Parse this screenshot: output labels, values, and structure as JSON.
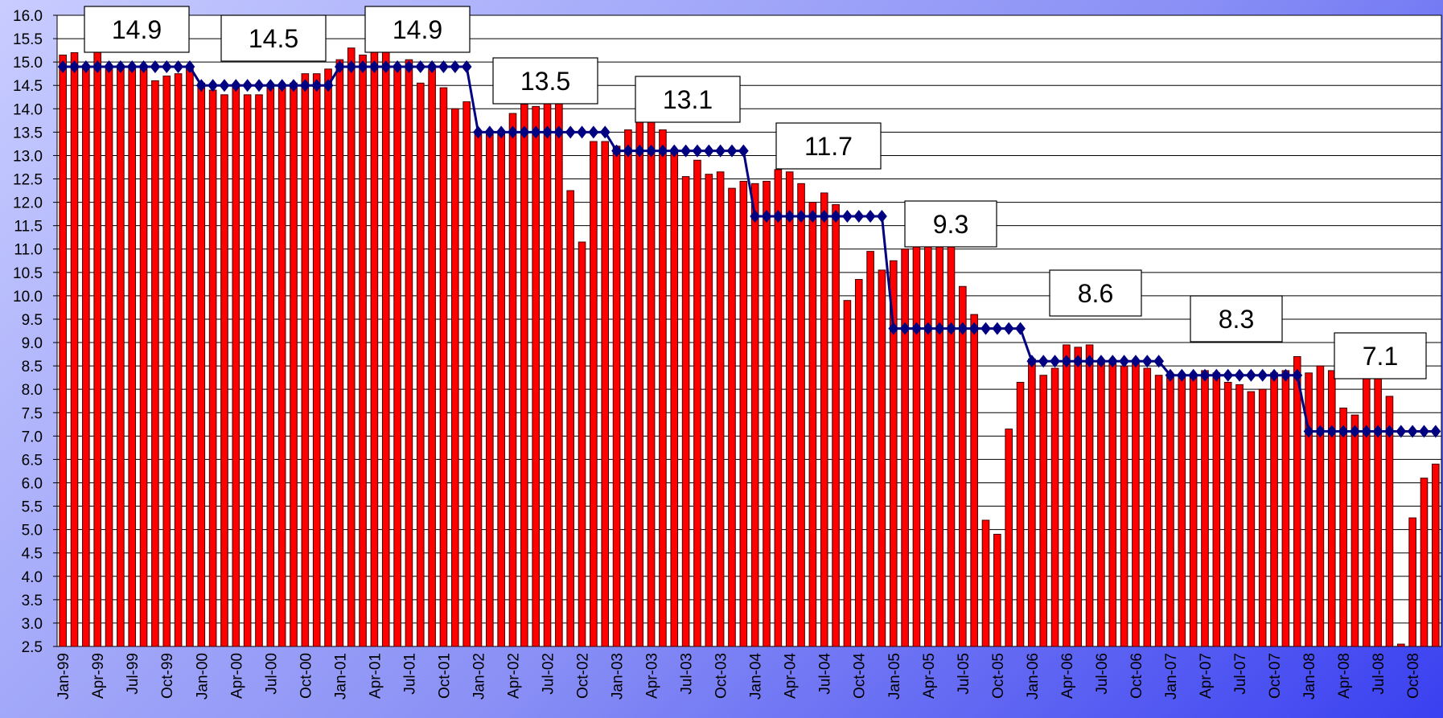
{
  "chart_data": {
    "type": "bar",
    "categories": [
      "Jan-99",
      null,
      null,
      "Apr-99",
      null,
      null,
      "Jul-99",
      null,
      null,
      "Oct-99",
      null,
      null,
      "Jan-00",
      null,
      null,
      "Apr-00",
      null,
      null,
      "Jul-00",
      null,
      null,
      "Oct-00",
      null,
      null,
      "Jan-01",
      null,
      null,
      "Apr-01",
      null,
      null,
      "Jul-01",
      null,
      null,
      "Oct-01",
      null,
      null,
      "Jan-02",
      null,
      null,
      "Apr-02",
      null,
      null,
      "Jul-02",
      null,
      null,
      "Oct-02",
      null,
      null,
      "Jan-03",
      null,
      null,
      "Apr-03",
      null,
      null,
      "Jul-03",
      null,
      null,
      "Oct-03",
      null,
      null,
      "Jan-04",
      null,
      null,
      "Apr-04",
      null,
      null,
      "Jul-04",
      null,
      null,
      "Oct-04",
      null,
      null,
      "Jan-05",
      null,
      null,
      "Apr-05",
      null,
      null,
      "Jul-05",
      null,
      null,
      "Oct-05",
      null,
      null,
      "Jan-06",
      null,
      null,
      "Apr-06",
      null,
      null,
      "Jul-06",
      null,
      null,
      "Oct-06",
      null,
      null,
      "Jan-07",
      null,
      null,
      "Apr-07",
      null,
      null,
      "Jul-07",
      null,
      null,
      "Oct-07",
      null,
      null,
      "Jan-08",
      null,
      null,
      "Apr-08",
      null,
      null,
      "Jul-08",
      null,
      null,
      "Oct-08",
      null,
      null
    ],
    "series": [
      {
        "mark": "bar",
        "color": "#ff0000",
        "values": [
          15.15,
          15.2,
          14.9,
          15.3,
          14.9,
          14.9,
          14.85,
          14.85,
          14.6,
          14.7,
          14.75,
          14.9,
          14.55,
          14.4,
          14.3,
          14.5,
          14.3,
          14.3,
          14.45,
          14.5,
          14.55,
          14.75,
          14.75,
          14.85,
          15.05,
          15.3,
          15.15,
          15.5,
          15.3,
          14.9,
          15.05,
          14.55,
          14.85,
          14.45,
          14.0,
          14.15,
          13.45,
          13.45,
          13.5,
          13.9,
          14.1,
          14.05,
          14.65,
          14.55,
          12.25,
          11.15,
          13.3,
          13.3,
          13.2,
          13.55,
          13.8,
          13.8,
          13.55,
          13.1,
          12.55,
          12.9,
          12.6,
          12.65,
          12.3,
          12.45,
          12.4,
          12.45,
          12.7,
          12.65,
          12.4,
          12.0,
          12.2,
          11.95,
          9.9,
          10.35,
          10.95,
          10.55,
          10.75,
          11.0,
          11.1,
          11.15,
          11.35,
          11.05,
          10.2,
          9.6,
          5.2,
          4.9,
          7.15,
          8.15,
          8.65,
          8.3,
          8.45,
          8.95,
          8.9,
          8.95,
          8.6,
          8.55,
          8.5,
          8.55,
          8.45,
          8.3,
          8.25,
          8.3,
          8.3,
          8.4,
          8.35,
          8.15,
          8.1,
          7.95,
          8.0,
          8.35,
          8.4,
          8.7,
          8.35,
          8.5,
          8.4,
          7.6,
          7.45,
          8.35,
          8.4,
          7.85,
          2.55,
          5.25,
          6.1,
          6.4
        ]
      },
      {
        "mark": "line",
        "color": "#000080",
        "values": [
          14.9,
          14.9,
          14.9,
          14.9,
          14.9,
          14.9,
          14.9,
          14.9,
          14.9,
          14.9,
          14.9,
          14.9,
          14.5,
          14.5,
          14.5,
          14.5,
          14.5,
          14.5,
          14.5,
          14.5,
          14.5,
          14.5,
          14.5,
          14.5,
          14.9,
          14.9,
          14.9,
          14.9,
          14.9,
          14.9,
          14.9,
          14.9,
          14.9,
          14.9,
          14.9,
          14.9,
          13.5,
          13.5,
          13.5,
          13.5,
          13.5,
          13.5,
          13.5,
          13.5,
          13.5,
          13.5,
          13.5,
          13.5,
          13.1,
          13.1,
          13.1,
          13.1,
          13.1,
          13.1,
          13.1,
          13.1,
          13.1,
          13.1,
          13.1,
          13.1,
          11.7,
          11.7,
          11.7,
          11.7,
          11.7,
          11.7,
          11.7,
          11.7,
          11.7,
          11.7,
          11.7,
          11.7,
          9.3,
          9.3,
          9.3,
          9.3,
          9.3,
          9.3,
          9.3,
          9.3,
          9.3,
          9.3,
          9.3,
          9.3,
          8.6,
          8.6,
          8.6,
          8.6,
          8.6,
          8.6,
          8.6,
          8.6,
          8.6,
          8.6,
          8.6,
          8.6,
          8.3,
          8.3,
          8.3,
          8.3,
          8.3,
          8.3,
          8.3,
          8.3,
          8.3,
          8.3,
          8.3,
          8.3,
          7.1,
          7.1,
          7.1,
          7.1,
          7.1,
          7.1,
          7.1,
          7.1,
          7.1,
          7.1,
          7.1,
          7.1
        ]
      }
    ],
    "annotations": [
      "14.9",
      "14.5",
      "14.9",
      "13.5",
      "13.1",
      "11.7",
      "9.3",
      "8.6",
      "8.3",
      "7.1"
    ],
    "ylim": [
      2.5,
      16.0
    ],
    "yticks": [
      2.5,
      {
        "value": 3,
        "label": "3.0"
      },
      3.5,
      {
        "value": 4,
        "label": "4.0"
      },
      4.5,
      {
        "value": 5,
        "label": "5.0"
      },
      5.5,
      {
        "value": 6,
        "label": "6.0"
      },
      6.5,
      {
        "value": 7,
        "label": "7.0"
      },
      7.5,
      {
        "value": 8,
        "label": "8.0"
      },
      8.5,
      {
        "value": 9,
        "label": "9.0"
      },
      9.5,
      {
        "value": 10,
        "label": "10.0"
      },
      10.5,
      {
        "value": 11,
        "label": "11.0"
      },
      11.5,
      {
        "value": 12,
        "label": "12.0"
      },
      12.5,
      {
        "value": 13,
        "label": "13.0"
      },
      13.5,
      {
        "value": 14,
        "label": "14.0"
      },
      14.5,
      {
        "value": 15,
        "label": "15.0"
      },
      15.5,
      {
        "value": 16,
        "label": "16.0"
      }
    ],
    "grid": true
  }
}
